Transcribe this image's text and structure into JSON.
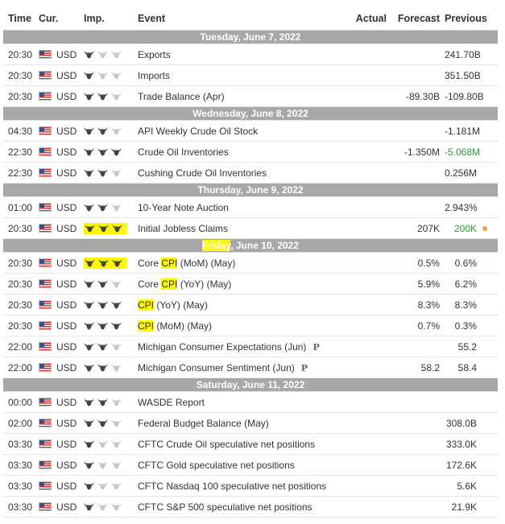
{
  "headers": {
    "time": "Time",
    "currency": "Cur.",
    "importance": "Imp.",
    "event": "Event",
    "actual": "Actual",
    "forecast": "Forecast",
    "previous": "Previous"
  },
  "days": [
    {
      "date": "Tuesday, June 7, 2022",
      "events": [
        {
          "time": "20:30",
          "currency": "USD",
          "importance": 1,
          "event": "Exports",
          "actual": "",
          "forecast": "",
          "previous": "241.70B"
        },
        {
          "time": "20:30",
          "currency": "USD",
          "importance": 1,
          "event": "Imports",
          "actual": "",
          "forecast": "",
          "previous": "351.50B"
        },
        {
          "time": "20:30",
          "currency": "USD",
          "importance": 2,
          "event": "Trade Balance (Apr)",
          "actual": "",
          "forecast": "-89.30B",
          "previous": "-109.80B"
        }
      ]
    },
    {
      "date": "Wednesday, June 8, 2022",
      "events": [
        {
          "time": "04:30",
          "currency": "USD",
          "importance": 2,
          "event": "API Weekly Crude Oil Stock",
          "actual": "",
          "forecast": "",
          "previous": "-1.181M"
        },
        {
          "time": "22:30",
          "currency": "USD",
          "importance": 3,
          "event": "Crude Oil Inventories",
          "actual": "",
          "forecast": "-1.350M",
          "previous": "-5.068M",
          "previous_color": "#2e9a2e"
        },
        {
          "time": "22:30",
          "currency": "USD",
          "importance": 2,
          "event": "Cushing Crude Oil Inventories",
          "actual": "",
          "forecast": "",
          "previous": "0.256M"
        }
      ]
    },
    {
      "date": "Thursday, June 9, 2022",
      "events": [
        {
          "time": "01:00",
          "currency": "USD",
          "importance": 2,
          "event": "10-Year Note Auction",
          "actual": "",
          "forecast": "",
          "previous": "2.943%"
        },
        {
          "time": "20:30",
          "currency": "USD",
          "importance": 3,
          "importance_highlight": true,
          "event": "Initial Jobless Claims",
          "actual": "",
          "forecast": "207K",
          "previous": "200K",
          "previous_color": "#2e9a2e",
          "status_dot": true
        }
      ]
    },
    {
      "date_hl": "Friday",
      "date_rest": ", June 10, 2022",
      "events": [
        {
          "time": "20:30",
          "currency": "USD",
          "importance": 3,
          "importance_highlight": true,
          "event_pre": "Core ",
          "event_hl": "CPI",
          "event_post": " (MoM) (May)",
          "actual": "",
          "forecast": "0.5%",
          "previous": "0.6%"
        },
        {
          "time": "20:30",
          "currency": "USD",
          "importance": 2,
          "event_pre": "Core ",
          "event_hl": "CPI",
          "event_post": " (YoY) (May)",
          "actual": "",
          "forecast": "5.9%",
          "previous": "6.2%"
        },
        {
          "time": "20:30",
          "currency": "USD",
          "importance": 3,
          "event_pre": "",
          "event_hl": "CPI",
          "event_post": " (YoY) (May)",
          "actual": "",
          "forecast": "8.3%",
          "previous": "8.3%"
        },
        {
          "time": "20:30",
          "currency": "USD",
          "importance": 3,
          "event_pre": "",
          "event_hl": "CPI",
          "event_post": " (MoM) (May)",
          "actual": "",
          "forecast": "0.7%",
          "previous": "0.3%"
        },
        {
          "time": "22:00",
          "currency": "USD",
          "importance": 2,
          "event": "Michigan Consumer Expectations (Jun)",
          "badge": "P",
          "actual": "",
          "forecast": "",
          "previous": "55.2"
        },
        {
          "time": "22:00",
          "currency": "USD",
          "importance": 2,
          "event": "Michigan Consumer Sentiment (Jun)",
          "badge": "P",
          "actual": "",
          "forecast": "58.2",
          "previous": "58.4"
        }
      ]
    },
    {
      "date": "Saturday, June 11, 2022",
      "events": [
        {
          "time": "00:00",
          "currency": "USD",
          "importance": 2,
          "event": "WASDE Report",
          "actual": "",
          "forecast": "",
          "previous": ""
        },
        {
          "time": "02:00",
          "currency": "USD",
          "importance": 2,
          "event": "Federal Budget Balance (May)",
          "actual": "",
          "forecast": "",
          "previous": "308.0B"
        },
        {
          "time": "03:30",
          "currency": "USD",
          "importance": 1,
          "event": "CFTC Crude Oil speculative net positions",
          "actual": "",
          "forecast": "",
          "previous": "333.0K"
        },
        {
          "time": "03:30",
          "currency": "USD",
          "importance": 1,
          "event": "CFTC Gold speculative net positions",
          "actual": "",
          "forecast": "",
          "previous": "172.6K"
        },
        {
          "time": "03:30",
          "currency": "USD",
          "importance": 1,
          "event": "CFTC Nasdaq 100 speculative net positions",
          "actual": "",
          "forecast": "",
          "previous": "5.6K"
        },
        {
          "time": "03:30",
          "currency": "USD",
          "importance": 1,
          "event": "CFTC S&P 500 speculative net positions",
          "actual": "",
          "forecast": "",
          "previous": "21.9K"
        }
      ]
    }
  ],
  "colors": {
    "bull_filled": "#444444",
    "bull_empty": "#c8c8c8",
    "highlight": "#fff700",
    "date_bar": "#a8a8a8",
    "positive": "#2e9a2e",
    "status_dot": "#e8a23a"
  },
  "icons": {
    "flag": "us-flag-icon",
    "importance": "bull-icon",
    "preliminary": "preliminary-badge"
  }
}
